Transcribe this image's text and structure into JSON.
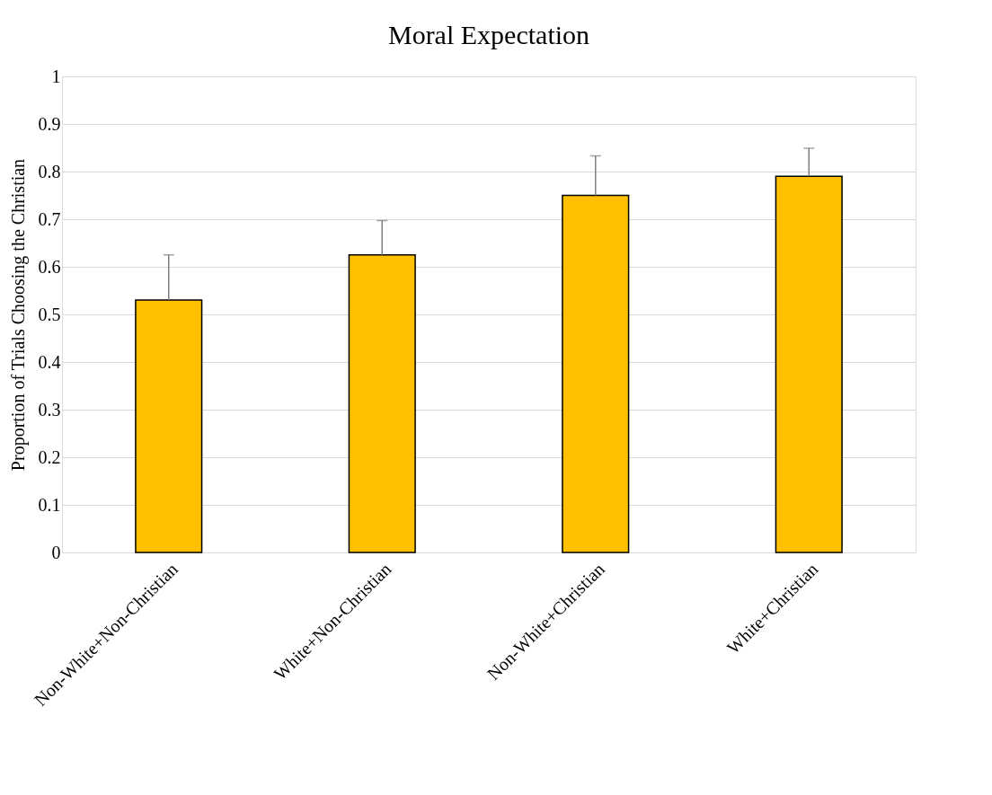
{
  "chart_data": {
    "type": "bar",
    "title": "Moral Expectation",
    "ylabel": "Proportion of Trials Choosing the Christian",
    "categories": [
      "Non-White+Non-Christian",
      "White+Non-Christian",
      "Non-White+Christian",
      "White+Christian"
    ],
    "values": [
      0.53,
      0.625,
      0.75,
      0.79
    ],
    "errors": [
      [
        0.53,
        0.625
      ],
      [
        0.625,
        0.697
      ],
      [
        0.75,
        0.833
      ],
      [
        0.79,
        0.849
      ]
    ],
    "color": "#ffc000",
    "ylim": [
      0,
      1
    ],
    "yticks": [
      0,
      0.1,
      0.2,
      0.3,
      0.4,
      0.5,
      0.6,
      0.7,
      0.8,
      0.9,
      1
    ],
    "grid": "y"
  }
}
